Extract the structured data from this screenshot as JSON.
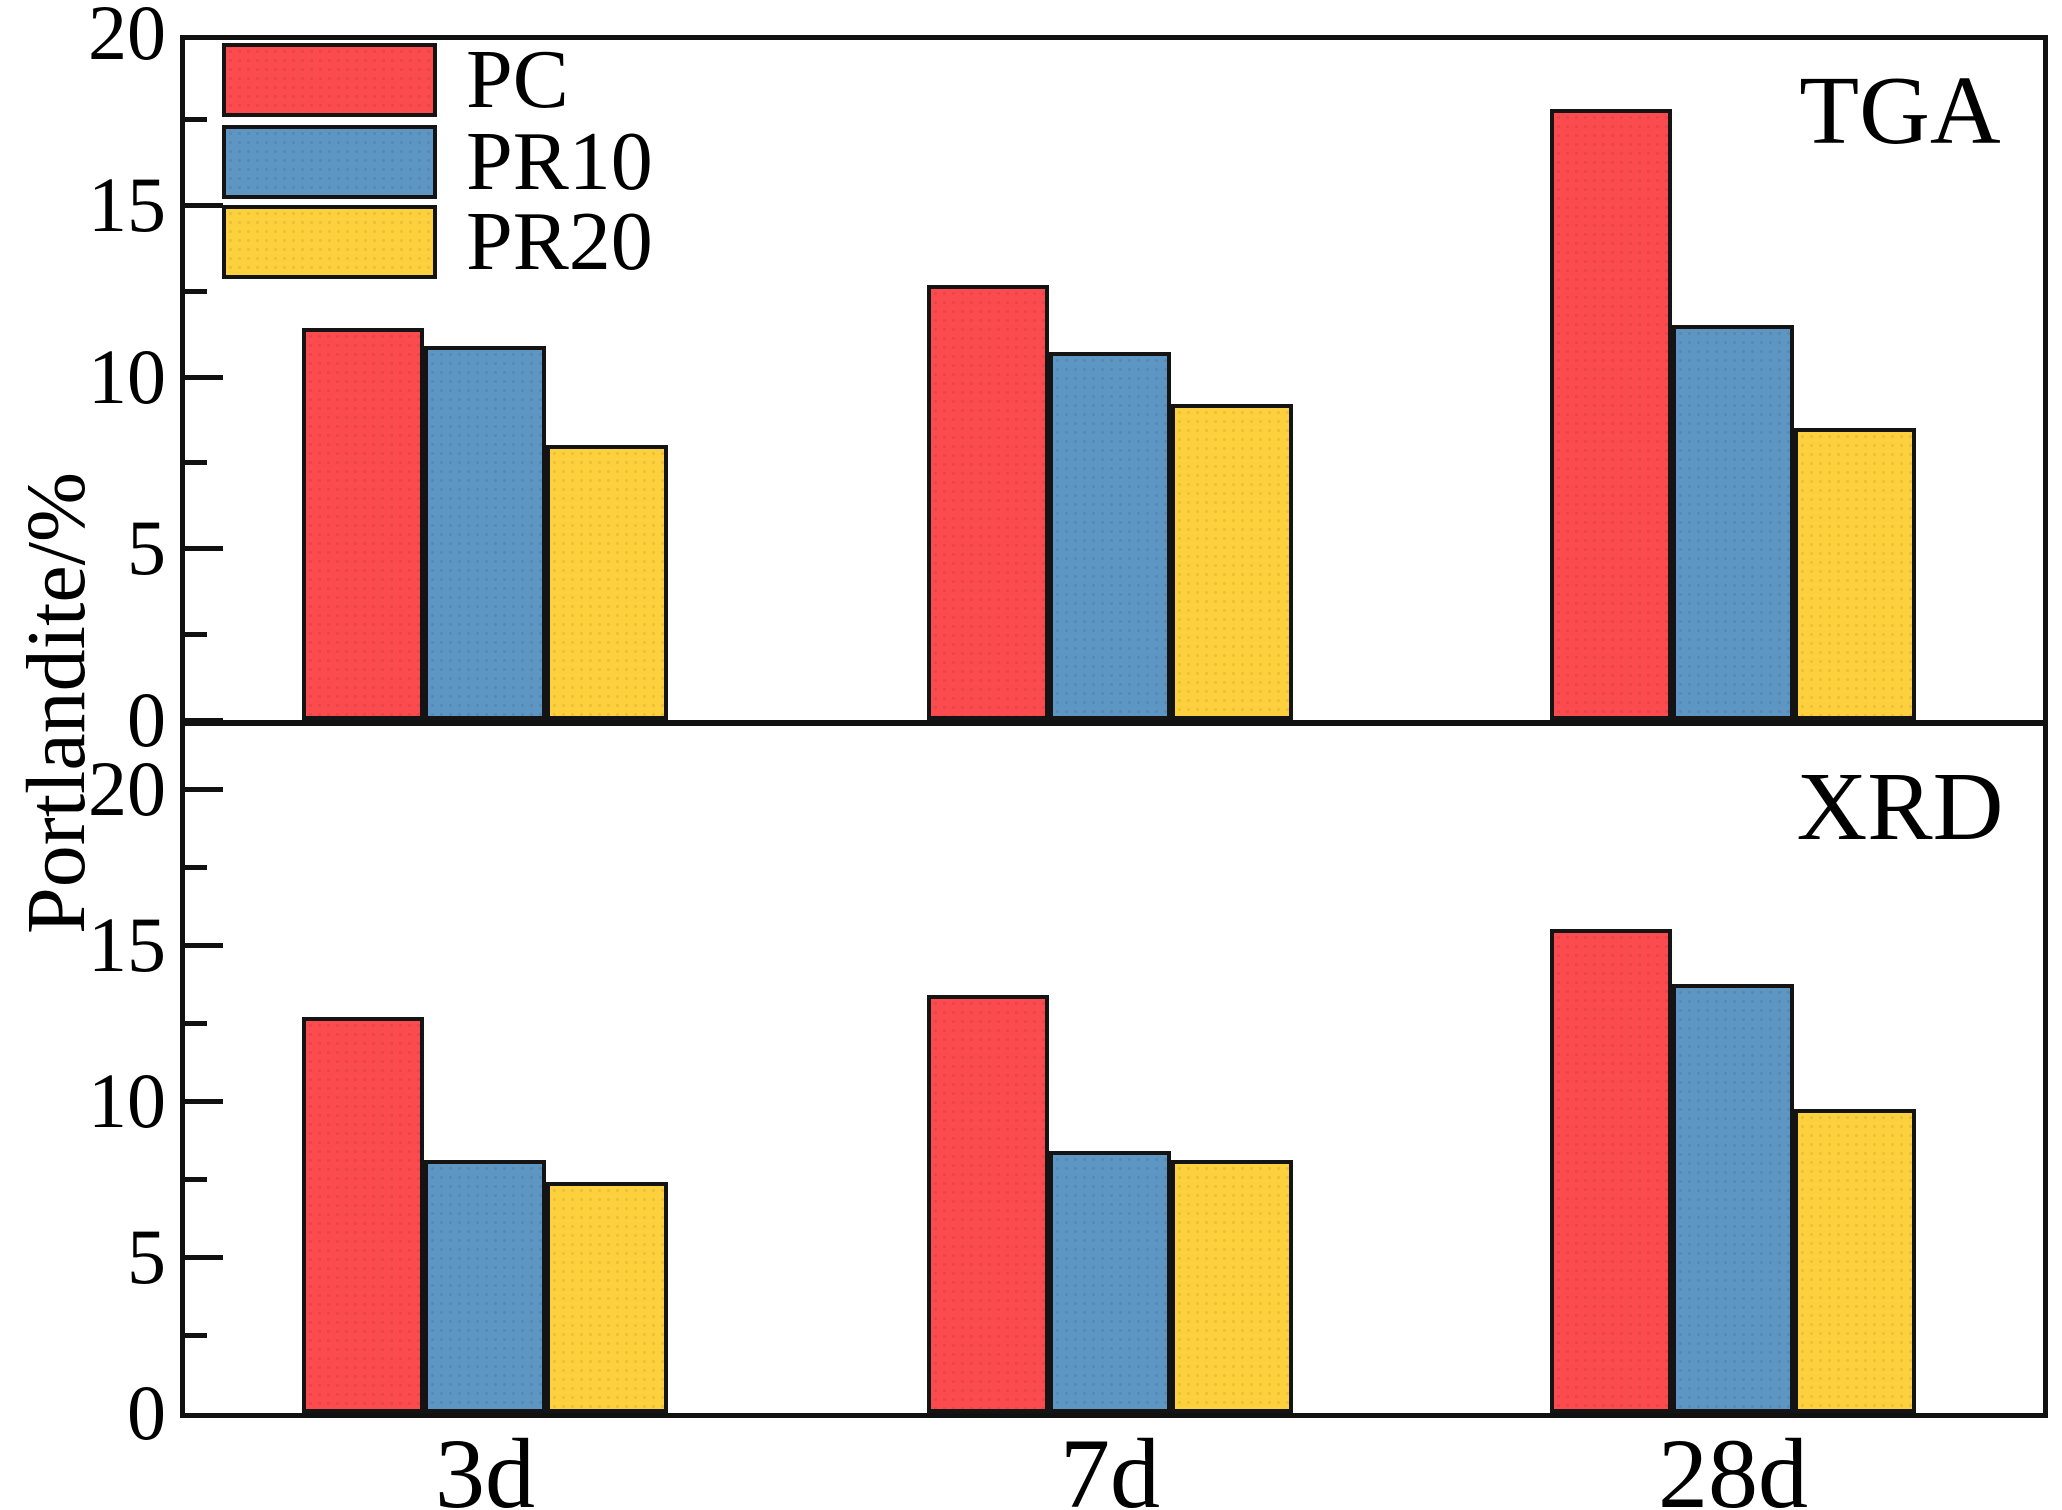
{
  "figure": {
    "y_axis_label": "Portlandite/%",
    "categories": [
      "3d",
      "7d",
      "28d"
    ],
    "legend": [
      {
        "name": "PC"
      },
      {
        "name": "PR10"
      },
      {
        "name": "PR20"
      }
    ],
    "panels": [
      {
        "id": "tga",
        "label": "TGA",
        "y_ticks": [
          20,
          15,
          10,
          5,
          0
        ]
      },
      {
        "id": "xrd",
        "label": "XRD",
        "y_ticks": [
          20,
          15,
          10,
          5,
          0
        ]
      }
    ]
  },
  "colors": {
    "series": [
      "#FB4B4E",
      "#5D95C3",
      "#FDD03E"
    ],
    "outline": "#141414",
    "axis": "#111111"
  },
  "chart_data": [
    {
      "type": "bar",
      "panel": "TGA",
      "title": "",
      "xlabel": "",
      "ylabel": "Portlandite/%",
      "ylim": [
        0,
        20
      ],
      "y_major_ticks": [
        0,
        5,
        10,
        15,
        20
      ],
      "y_minor_ticks": [
        2.5,
        7.5,
        12.5,
        17.5
      ],
      "grid": false,
      "legend_position": "top-left",
      "annotation": "TGA",
      "categories": [
        "3d",
        "7d",
        "28d"
      ],
      "series": [
        {
          "name": "PC",
          "values": [
            11.4,
            12.65,
            17.8
          ]
        },
        {
          "name": "PR10",
          "values": [
            10.9,
            10.7,
            11.5
          ]
        },
        {
          "name": "PR20",
          "values": [
            8.0,
            9.2,
            8.5
          ]
        }
      ]
    },
    {
      "type": "bar",
      "panel": "XRD",
      "title": "",
      "xlabel": "",
      "ylabel": "Portlandite/%",
      "ylim": [
        0,
        20
      ],
      "y_major_ticks": [
        0,
        5,
        10,
        15,
        20
      ],
      "y_minor_ticks": [
        2.5,
        7.5,
        12.5,
        17.5
      ],
      "grid": false,
      "annotation": "XRD",
      "categories": [
        "3d",
        "7d",
        "28d"
      ],
      "series": [
        {
          "name": "PC",
          "values": [
            12.7,
            13.4,
            15.5
          ]
        },
        {
          "name": "PR10",
          "values": [
            8.1,
            8.4,
            13.75
          ]
        },
        {
          "name": "PR20",
          "values": [
            7.4,
            8.1,
            9.75
          ]
        }
      ]
    }
  ]
}
